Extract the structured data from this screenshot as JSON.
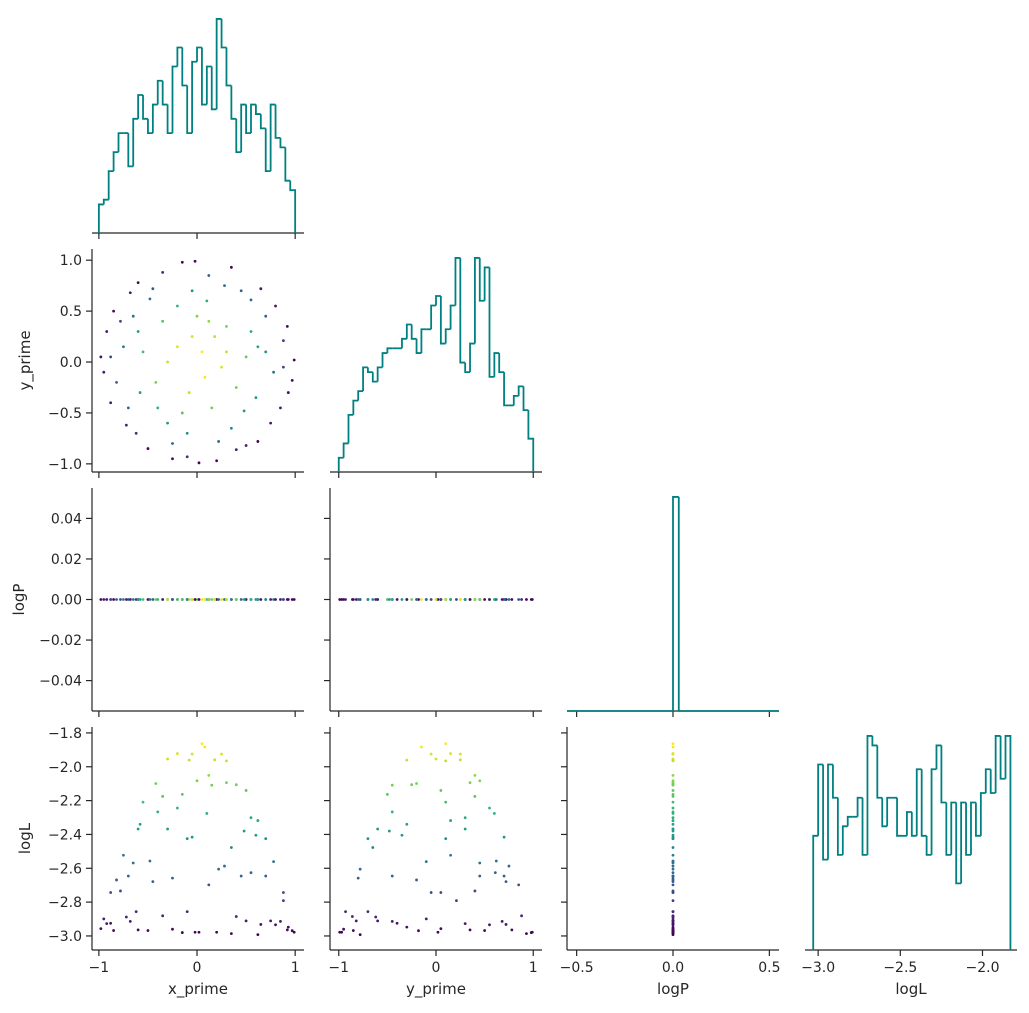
{
  "chart_data": {
    "type": "corner",
    "variables": [
      "x_prime",
      "y_prime",
      "logP",
      "logL"
    ],
    "axes": [
      {
        "xlim": [
          -1.07,
          1.09
        ],
        "xticks": [
          {
            "value": -1,
            "label": "−1"
          },
          0,
          1
        ]
      },
      {
        "xlim": [
          -1.09,
          1.09
        ],
        "xticks": [
          {
            "value": -1,
            "label": "−1"
          },
          0,
          1
        ],
        "ylim": [
          -1.08,
          1.11
        ],
        "yticks": [
          {
            "value": -1,
            "label": "−1.0"
          },
          {
            "value": -0.5,
            "label": "−0.5"
          },
          {
            "value": 0,
            "label": "0.0"
          },
          {
            "value": 0.5,
            "label": "0.5"
          },
          {
            "value": 1,
            "label": "1.0"
          }
        ]
      },
      {
        "xlim": [
          -0.55,
          0.55
        ],
        "xticks": [
          {
            "value": -0.5,
            "label": "−0.5"
          },
          {
            "value": 0,
            "label": "0.0"
          },
          {
            "value": 0.5,
            "label": "0.5"
          }
        ],
        "ylim": [
          -0.055,
          0.055
        ],
        "yticks": [
          {
            "value": -0.04,
            "label": "−0.04"
          },
          {
            "value": -0.02,
            "label": "−0.02"
          },
          {
            "value": 0,
            "label": "0.00"
          },
          {
            "value": 0.02,
            "label": "0.02"
          },
          {
            "value": 0.04,
            "label": "0.04"
          }
        ]
      },
      {
        "xlim": [
          -3.08,
          -1.79
        ],
        "xticks": [
          {
            "value": -3,
            "label": "−3.0"
          },
          {
            "value": -2.5,
            "label": "−2.5"
          },
          {
            "value": -2,
            "label": "−2.0"
          }
        ],
        "ylim": [
          -3.083,
          -1.765
        ],
        "yticks": [
          {
            "value": -3,
            "label": "−3.0"
          },
          {
            "value": -2.8,
            "label": "−2.8"
          },
          {
            "value": -2.6,
            "label": "−2.6"
          },
          {
            "value": -2.4,
            "label": "−2.4"
          },
          {
            "value": -2.2,
            "label": "−2.2"
          },
          {
            "value": -2,
            "label": "−2.0"
          },
          {
            "value": -1.8,
            "label": "−1.8"
          }
        ]
      }
    ],
    "samples": [
      [
        0.12,
        -0.45,
        0.55,
        -0.78,
        0.88,
        -0.95,
        0.97,
        -0.62,
        0.4,
        -0.1,
        0.05,
        -0.2,
        0.25,
        -0.08,
        0.3,
        -0.35,
        0.15,
        -0.42,
        0.5,
        -0.55,
        0.6,
        -0.3,
        0.1,
        -0.65,
        0.7,
        -0.15,
        0.35,
        -0.7,
        0.75,
        -0.85,
        0.92,
        -0.98,
        0.99,
        -0.25,
        0.2,
        -0.5,
        0.62,
        -0.88,
        0.85,
        -0.6,
        0.65,
        0.0,
        -0.05,
        0.45,
        -0.75,
        0.78,
        -0.82,
        0.7,
        -0.4,
        0.35,
        -0.1,
        0.18,
        -0.3,
        0.4,
        -0.2,
        0.22,
        -0.48,
        0.55,
        -0.58,
        0.08,
        -0.92,
        0.93,
        -0.35,
        0.5,
        -0.72,
        0.8,
        -0.68,
        0.02,
        -0.02,
        0.28,
        -0.25,
        0.88,
        -0.88,
        0.62,
        -0.15,
        0.12,
        -0.6,
        0.48,
        -0.05,
        0.3
      ],
      [
        0.85,
        0.72,
        0.61,
        0.4,
        0.21,
        -0.1,
        -0.18,
        -0.7,
        -0.86,
        -0.93,
        0.1,
        0.15,
        -0.05,
        -0.3,
        0.35,
        0.4,
        -0.45,
        -0.2,
        0.05,
        0.1,
        -0.35,
        -0.6,
        0.6,
        0.45,
        0.45,
        0.98,
        0.93,
        -0.45,
        -0.6,
        0.5,
        0.35,
        0.05,
        0.02,
        -0.95,
        -0.97,
        -0.85,
        -0.78,
        -0.4,
        -0.45,
        0.78,
        0.72,
        0.45,
        0.7,
        0.7,
        0.15,
        -0.1,
        -0.2,
        0.1,
        -0.45,
        -0.65,
        -0.7,
        0.25,
        0.0,
        -0.25,
        0.55,
        -0.78,
        0.62,
        0.3,
        -0.3,
        -0.15,
        0.3,
        -0.3,
        0.88,
        -0.82,
        -0.62,
        0.55,
        0.68,
        -0.99,
        0.99,
        0.75,
        -0.8,
        -0.05,
        0.05,
        0.15,
        -0.5,
        0.4,
        0.3,
        -0.48,
        0.25,
        0.1
      ],
      [
        0,
        0,
        0,
        0,
        0,
        0,
        0,
        0,
        0,
        0,
        0,
        0,
        0,
        0,
        0,
        0,
        0,
        0,
        0,
        0,
        0,
        0,
        0,
        0,
        0,
        0,
        0,
        0,
        0,
        0,
        0,
        0,
        0,
        0,
        0,
        0,
        0,
        0,
        0,
        0,
        0,
        0,
        0,
        0,
        0,
        0,
        0,
        0,
        0,
        0,
        0,
        0,
        0,
        0,
        0,
        0,
        0,
        0,
        0,
        0,
        0,
        0,
        0,
        0,
        0,
        0,
        0,
        0,
        0,
        0,
        0,
        0,
        0,
        0,
        0,
        0,
        0,
        0,
        0,
        0
      ],
      [
        -2.698,
        -2.679,
        -2.626,
        -2.734,
        -2.791,
        -2.899,
        -2.969,
        -2.856,
        -2.885,
        -2.856,
        -1.864,
        -1.922,
        -1.925,
        -1.961,
        -2.094,
        -2.175,
        -2.109,
        -2.099,
        -2.14,
        -2.209,
        -2.405,
        -2.368,
        -2.276,
        -2.569,
        -2.646,
        -2.98,
        -2.986,
        -2.646,
        -2.911,
        -2.968,
        -2.964,
        -2.957,
        -2.978,
        -2.96,
        -2.978,
        -2.968,
        -2.992,
        -2.925,
        -2.914,
        -2.964,
        -2.932,
        -2.083,
        -2.416,
        -2.646,
        -2.523,
        -2.561,
        -2.669,
        -2.425,
        -2.267,
        -2.477,
        -2.425,
        -1.959,
        -1.954,
        -2.106,
        -2.244,
        -2.605,
        -2.557,
        -2.301,
        -2.34,
        -1.883,
        -2.927,
        -2.948,
        -2.881,
        -2.911,
        -2.888,
        -2.934,
        -2.914,
        -2.978,
        -2.978,
        -2.587,
        -2.658,
        -2.743,
        -2.743,
        -2.318,
        -2.163,
        -2.051,
        -2.368,
        -2.38,
        -1.925,
        -1.965
      ]
    ],
    "histograms": [
      {
        "bins": [
          -1,
          -0.95,
          -0.9,
          -0.85,
          -0.8,
          -0.75,
          -0.7,
          -0.65,
          -0.6,
          -0.55,
          -0.5,
          -0.45,
          -0.4,
          -0.35,
          -0.3,
          -0.25,
          -0.2,
          -0.15,
          -0.1,
          -0.05,
          0,
          0.05,
          0.1,
          0.15,
          0.2,
          0.25,
          0.3,
          0.35,
          0.4,
          0.45,
          0.5,
          0.55,
          0.6,
          0.65,
          0.7,
          0.75,
          0.8,
          0.85,
          0.9,
          0.95,
          1
        ],
        "counts": [
          6,
          7,
          13,
          17,
          21,
          21,
          14,
          24,
          29,
          24,
          21,
          27,
          32,
          27,
          21,
          35,
          39,
          31,
          21,
          36,
          39,
          27,
          35,
          26,
          45,
          39,
          31,
          24,
          17,
          27,
          21,
          27,
          25,
          22,
          13,
          27,
          20,
          18,
          11,
          9
        ]
      },
      {
        "bins": [
          -1,
          -0.95,
          -0.9,
          -0.85,
          -0.8,
          -0.75,
          -0.7,
          -0.65,
          -0.6,
          -0.55,
          -0.5,
          -0.45,
          -0.4,
          -0.35,
          -0.3,
          -0.25,
          -0.2,
          -0.15,
          -0.1,
          -0.05,
          0,
          0.05,
          0.1,
          0.15,
          0.2,
          0.25,
          0.3,
          0.35,
          0.4,
          0.45,
          0.5,
          0.55,
          0.6,
          0.65,
          0.7,
          0.75,
          0.8,
          0.85,
          0.9,
          0.95,
          1
        ],
        "counts": [
          3,
          6,
          12,
          15,
          17,
          22,
          21,
          19,
          22,
          25,
          26,
          26,
          26,
          28,
          31,
          28,
          25,
          30,
          30,
          35,
          37,
          27,
          30,
          35,
          45,
          23,
          21,
          27,
          45,
          36,
          43,
          20,
          25,
          21,
          14,
          14,
          16,
          18,
          13,
          7
        ]
      },
      {
        "bins": [
          -0.55,
          0,
          0.03,
          0.55
        ],
        "counts": [
          0,
          1000,
          0
        ]
      },
      {
        "bins": [
          -3.03,
          -3,
          -2.97,
          -2.94,
          -2.91,
          -2.88,
          -2.85,
          -2.82,
          -2.79,
          -2.76,
          -2.73,
          -2.7,
          -2.67,
          -2.64,
          -2.61,
          -2.58,
          -2.55,
          -2.52,
          -2.49,
          -2.46,
          -2.43,
          -2.4,
          -2.37,
          -2.34,
          -2.31,
          -2.28,
          -2.25,
          -2.22,
          -2.19,
          -2.16,
          -2.13,
          -2.1,
          -2.07,
          -2.04,
          -2.01,
          -1.98,
          -1.95,
          -1.92,
          -1.89,
          -1.86,
          -1.83
        ],
        "counts": [
          24,
          39,
          19,
          39,
          32,
          20,
          26,
          28,
          28,
          32,
          20,
          45,
          43,
          32,
          26,
          32,
          32,
          24,
          24,
          29,
          24,
          38,
          24,
          20,
          38,
          43,
          31,
          20,
          31,
          14,
          31,
          20,
          31,
          24,
          33,
          38,
          33,
          45,
          36,
          45
        ]
      }
    ],
    "hist_color": "#008080",
    "color_by": "logL",
    "colormap": [
      "#440154",
      "#482878",
      "#3e4989",
      "#31688e",
      "#26828e",
      "#1f9e89",
      "#35b779",
      "#6ece58",
      "#b5de2b",
      "#fde725"
    ]
  }
}
